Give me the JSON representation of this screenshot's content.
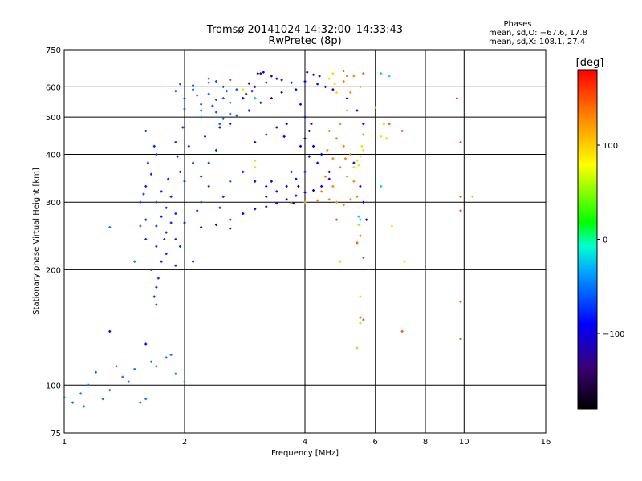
{
  "chart_data": {
    "type": "scatter",
    "title": "Tromsø 20141024 14:32:00–14:33:43",
    "subtitle": "RwPretec (8p)",
    "stats": {
      "label": "Phases",
      "line1": "mean, sd,O: −67.6, 17.8",
      "line2": "mean, sd,X: 108.1, 27.4"
    },
    "xlabel": "Frequency [MHz]",
    "ylabel": "Stationary phase Virtual Height [km]",
    "x_scale": "log",
    "y_scale": "log",
    "xlim": [
      1,
      16
    ],
    "ylim": [
      75,
      750
    ],
    "xticks": [
      1,
      2,
      4,
      6,
      8,
      10,
      16
    ],
    "xtick_labels": [
      "1",
      "2",
      "4",
      "6",
      "8",
      "10",
      "16"
    ],
    "yticks": [
      75,
      100,
      200,
      300,
      400,
      500,
      600,
      750
    ],
    "ytick_labels": [
      "75",
      "100",
      "200",
      "300",
      "400",
      "500",
      "600",
      "750"
    ],
    "grid": true,
    "colorbar": {
      "label": "[deg]",
      "range": [
        -180,
        180
      ],
      "ticks": [
        100,
        0,
        -100
      ],
      "tick_labels": [
        "100",
        "0",
        "−100"
      ],
      "colors": [
        "#000000",
        "#3a0072",
        "#0000ff",
        "#00a0ff",
        "#00ffd0",
        "#00ff00",
        "#ffff00",
        "#ff9000",
        "#ff0000"
      ]
    },
    "series": [
      {
        "phase_deg": -60,
        "points": [
          [
            2.1,
            590
          ],
          [
            2.3,
            575
          ],
          [
            2.5,
            560
          ],
          [
            2.2,
            540
          ],
          [
            2.4,
            555
          ],
          [
            2.6,
            545
          ],
          [
            2.0,
            525
          ],
          [
            2.2,
            520
          ],
          [
            2.4,
            515
          ],
          [
            2.6,
            510
          ],
          [
            2.1,
            605
          ],
          [
            2.3,
            615
          ],
          [
            2.5,
            600
          ],
          [
            2.7,
            590
          ],
          [
            1.9,
            585
          ],
          [
            2.0,
            560
          ],
          [
            2.2,
            500
          ],
          [
            2.5,
            495
          ],
          [
            2.7,
            505
          ],
          [
            2.3,
            630
          ],
          [
            2.4,
            620
          ],
          [
            2.6,
            625
          ],
          [
            1.95,
            610
          ],
          [
            2.15,
            570
          ],
          [
            2.35,
            535
          ],
          [
            2.55,
            585
          ],
          [
            2.8,
            560
          ],
          [
            2.45,
            480
          ]
        ]
      },
      {
        "phase_deg": -75,
        "points": [
          [
            1.6,
            330
          ],
          [
            1.7,
            300
          ],
          [
            1.8,
            290
          ],
          [
            1.75,
            320
          ],
          [
            1.65,
            355
          ],
          [
            1.85,
            310
          ],
          [
            1.9,
            280
          ],
          [
            1.6,
            270
          ],
          [
            1.7,
            260
          ],
          [
            1.8,
            250
          ],
          [
            1.9,
            240
          ],
          [
            1.7,
            230
          ],
          [
            1.8,
            220
          ],
          [
            1.75,
            210
          ],
          [
            1.9,
            205
          ],
          [
            1.65,
            200
          ],
          [
            1.72,
            190
          ],
          [
            1.7,
            180
          ],
          [
            1.68,
            170
          ],
          [
            1.7,
            162
          ],
          [
            1.6,
            240
          ],
          [
            1.55,
            300
          ],
          [
            1.62,
            380
          ],
          [
            1.68,
            420
          ],
          [
            1.6,
            460
          ],
          [
            1.7,
            400
          ],
          [
            1.95,
            360
          ],
          [
            2.0,
            340
          ],
          [
            2.1,
            380
          ],
          [
            2.2,
            350
          ],
          [
            2.05,
            420
          ],
          [
            1.9,
            430
          ],
          [
            2.3,
            330
          ],
          [
            2.5,
            310
          ],
          [
            2.6,
            340
          ],
          [
            2.3,
            380
          ],
          [
            2.4,
            410
          ],
          [
            2.2,
            300
          ],
          [
            1.95,
            230
          ],
          [
            2.1,
            210
          ],
          [
            1.85,
            265
          ],
          [
            1.75,
            275
          ],
          [
            1.58,
            315
          ],
          [
            1.82,
            345
          ],
          [
            2.15,
            285
          ],
          [
            2.45,
            290
          ],
          [
            1.92,
            395
          ],
          [
            2.25,
            445
          ],
          [
            1.98,
            470
          ],
          [
            1.78,
            240
          ]
        ]
      },
      {
        "phase_deg": -50,
        "points": [
          [
            1.0,
            93
          ],
          [
            1.05,
            90
          ],
          [
            1.1,
            95
          ],
          [
            1.15,
            100
          ],
          [
            1.25,
            92
          ],
          [
            1.3,
            97
          ],
          [
            1.4,
            105
          ],
          [
            1.5,
            110
          ],
          [
            1.55,
            90
          ],
          [
            1.6,
            92
          ],
          [
            1.65,
            115
          ],
          [
            1.8,
            118
          ],
          [
            1.85,
            120
          ],
          [
            1.45,
            102
          ],
          [
            1.35,
            112
          ],
          [
            1.2,
            108
          ],
          [
            1.7,
            112
          ],
          [
            1.9,
            107
          ],
          [
            2.0,
            102
          ],
          [
            1.12,
            88
          ],
          [
            1.3,
            258
          ],
          [
            1.5,
            210
          ],
          [
            1.55,
            260
          ]
        ]
      },
      {
        "phase_deg": -95,
        "points": [
          [
            2.0,
            265
          ],
          [
            2.2,
            258
          ],
          [
            2.4,
            262
          ],
          [
            2.6,
            270
          ],
          [
            2.8,
            280
          ],
          [
            3.0,
            288
          ],
          [
            3.2,
            292
          ],
          [
            3.4,
            298
          ],
          [
            3.6,
            305
          ],
          [
            3.8,
            312
          ],
          [
            4.0,
            318
          ],
          [
            4.2,
            322
          ],
          [
            4.4,
            330
          ],
          [
            4.6,
            345
          ],
          [
            4.3,
            380
          ],
          [
            4.2,
            420
          ],
          [
            4.1,
            460
          ],
          [
            4.0,
            500
          ],
          [
            3.9,
            540
          ],
          [
            3.8,
            590
          ],
          [
            3.7,
            615
          ],
          [
            3.5,
            580
          ],
          [
            3.3,
            560
          ],
          [
            3.1,
            545
          ],
          [
            2.9,
            520
          ],
          [
            2.8,
            560
          ],
          [
            3.0,
            600
          ],
          [
            3.2,
            615
          ],
          [
            3.4,
            630
          ],
          [
            4.0,
            620
          ],
          [
            4.3,
            610
          ],
          [
            4.5,
            600
          ],
          [
            4.7,
            590
          ],
          [
            3.6,
            480
          ],
          [
            3.4,
            470
          ],
          [
            3.2,
            450
          ],
          [
            3.0,
            430
          ],
          [
            2.8,
            360
          ],
          [
            3.0,
            340
          ],
          [
            3.2,
            330
          ],
          [
            3.4,
            320
          ],
          [
            3.6,
            330
          ],
          [
            3.8,
            345
          ],
          [
            4.0,
            360
          ],
          [
            4.4,
            400
          ],
          [
            4.6,
            360
          ],
          [
            4.1,
            395
          ],
          [
            3.9,
            420
          ],
          [
            3.7,
            360
          ],
          [
            3.55,
            445
          ],
          [
            3.15,
            655
          ],
          [
            3.05,
            650
          ],
          [
            2.95,
            585
          ],
          [
            5.1,
            560
          ],
          [
            5.4,
            520
          ],
          [
            5.6,
            480
          ],
          [
            5.3,
            380
          ],
          [
            5.5,
            330
          ],
          [
            5.6,
            300
          ],
          [
            5.7,
            270
          ],
          [
            2.45,
            470
          ],
          [
            2.6,
            480
          ],
          [
            3.3,
            340
          ],
          [
            1.3,
            138
          ],
          [
            1.6,
            128
          ]
        ]
      },
      {
        "phase_deg": -130,
        "points": [
          [
            2.9,
            612
          ],
          [
            3.1,
            650
          ],
          [
            3.3,
            640
          ],
          [
            3.5,
            625
          ],
          [
            3.0,
            560
          ],
          [
            4.05,
            655
          ],
          [
            4.2,
            645
          ],
          [
            4.35,
            640
          ],
          [
            3.85,
            330
          ],
          [
            3.75,
            298
          ],
          [
            4.15,
            480
          ],
          [
            4.0,
            440
          ],
          [
            3.2,
            310
          ],
          [
            2.6,
            256
          ],
          [
            2.85,
            575
          ]
        ]
      },
      {
        "phase_deg": 130,
        "points": [
          [
            4.6,
            460
          ],
          [
            4.8,
            440
          ],
          [
            5.0,
            420
          ],
          [
            5.2,
            400
          ],
          [
            4.7,
            390
          ],
          [
            4.9,
            370
          ],
          [
            5.1,
            350
          ],
          [
            5.3,
            340
          ],
          [
            4.4,
            320
          ],
          [
            4.6,
            305
          ],
          [
            4.8,
            300
          ],
          [
            5.0,
            295
          ],
          [
            5.2,
            305
          ],
          [
            5.4,
            310
          ],
          [
            4.9,
            480
          ],
          [
            5.1,
            520
          ],
          [
            5.2,
            580
          ],
          [
            5.3,
            640
          ],
          [
            5.5,
            600
          ],
          [
            5.0,
            620
          ],
          [
            4.5,
            350
          ],
          [
            4.7,
            330
          ],
          [
            5.6,
            450
          ],
          [
            3.7,
            298
          ],
          [
            4.0,
            300
          ],
          [
            4.3,
            303
          ],
          [
            5.05,
            390
          ],
          [
            4.55,
            410
          ]
        ]
      },
      {
        "phase_deg": 95,
        "points": [
          [
            4.7,
            650
          ],
          [
            4.6,
            630
          ],
          [
            4.75,
            610
          ],
          [
            4.8,
            580
          ],
          [
            4.65,
            600
          ],
          [
            5.4,
            385
          ],
          [
            5.5,
            395
          ],
          [
            5.6,
            410
          ],
          [
            5.45,
            375
          ],
          [
            5.3,
            370
          ],
          [
            5.55,
            420
          ],
          [
            3.0,
            385
          ],
          [
            3.0,
            370
          ],
          [
            2.8,
            590
          ],
          [
            6.4,
            440
          ],
          [
            6.6,
            260
          ],
          [
            7.1,
            210
          ],
          [
            6.2,
            445
          ]
        ]
      },
      {
        "phase_deg": 150,
        "points": [
          [
            5.0,
            660
          ],
          [
            5.1,
            640
          ],
          [
            5.6,
            650
          ],
          [
            6.5,
            480
          ],
          [
            7.0,
            460
          ],
          [
            9.8,
            430
          ],
          [
            9.8,
            285
          ],
          [
            9.8,
            310
          ],
          [
            5.5,
            150
          ],
          [
            5.6,
            148
          ],
          [
            7.0,
            138
          ],
          [
            9.8,
            132
          ],
          [
            9.8,
            165
          ],
          [
            9.6,
            560
          ],
          [
            5.4,
            235
          ],
          [
            5.5,
            245
          ],
          [
            4.8,
            270
          ],
          [
            5.6,
            215
          ]
        ]
      },
      {
        "phase_deg": 50,
        "points": [
          [
            5.4,
            125
          ],
          [
            5.5,
            145
          ],
          [
            5.5,
            170
          ],
          [
            10.5,
            310
          ],
          [
            5.45,
            262
          ],
          [
            4.9,
            210
          ],
          [
            6.0,
            530
          ],
          [
            6.3,
            480
          ]
        ]
      },
      {
        "phase_deg": -20,
        "points": [
          [
            5.5,
            270
          ],
          [
            5.45,
            275
          ],
          [
            6.2,
            330
          ],
          [
            6.5,
            640
          ],
          [
            6.2,
            650
          ],
          [
            3.0,
            560
          ]
        ]
      }
    ]
  }
}
